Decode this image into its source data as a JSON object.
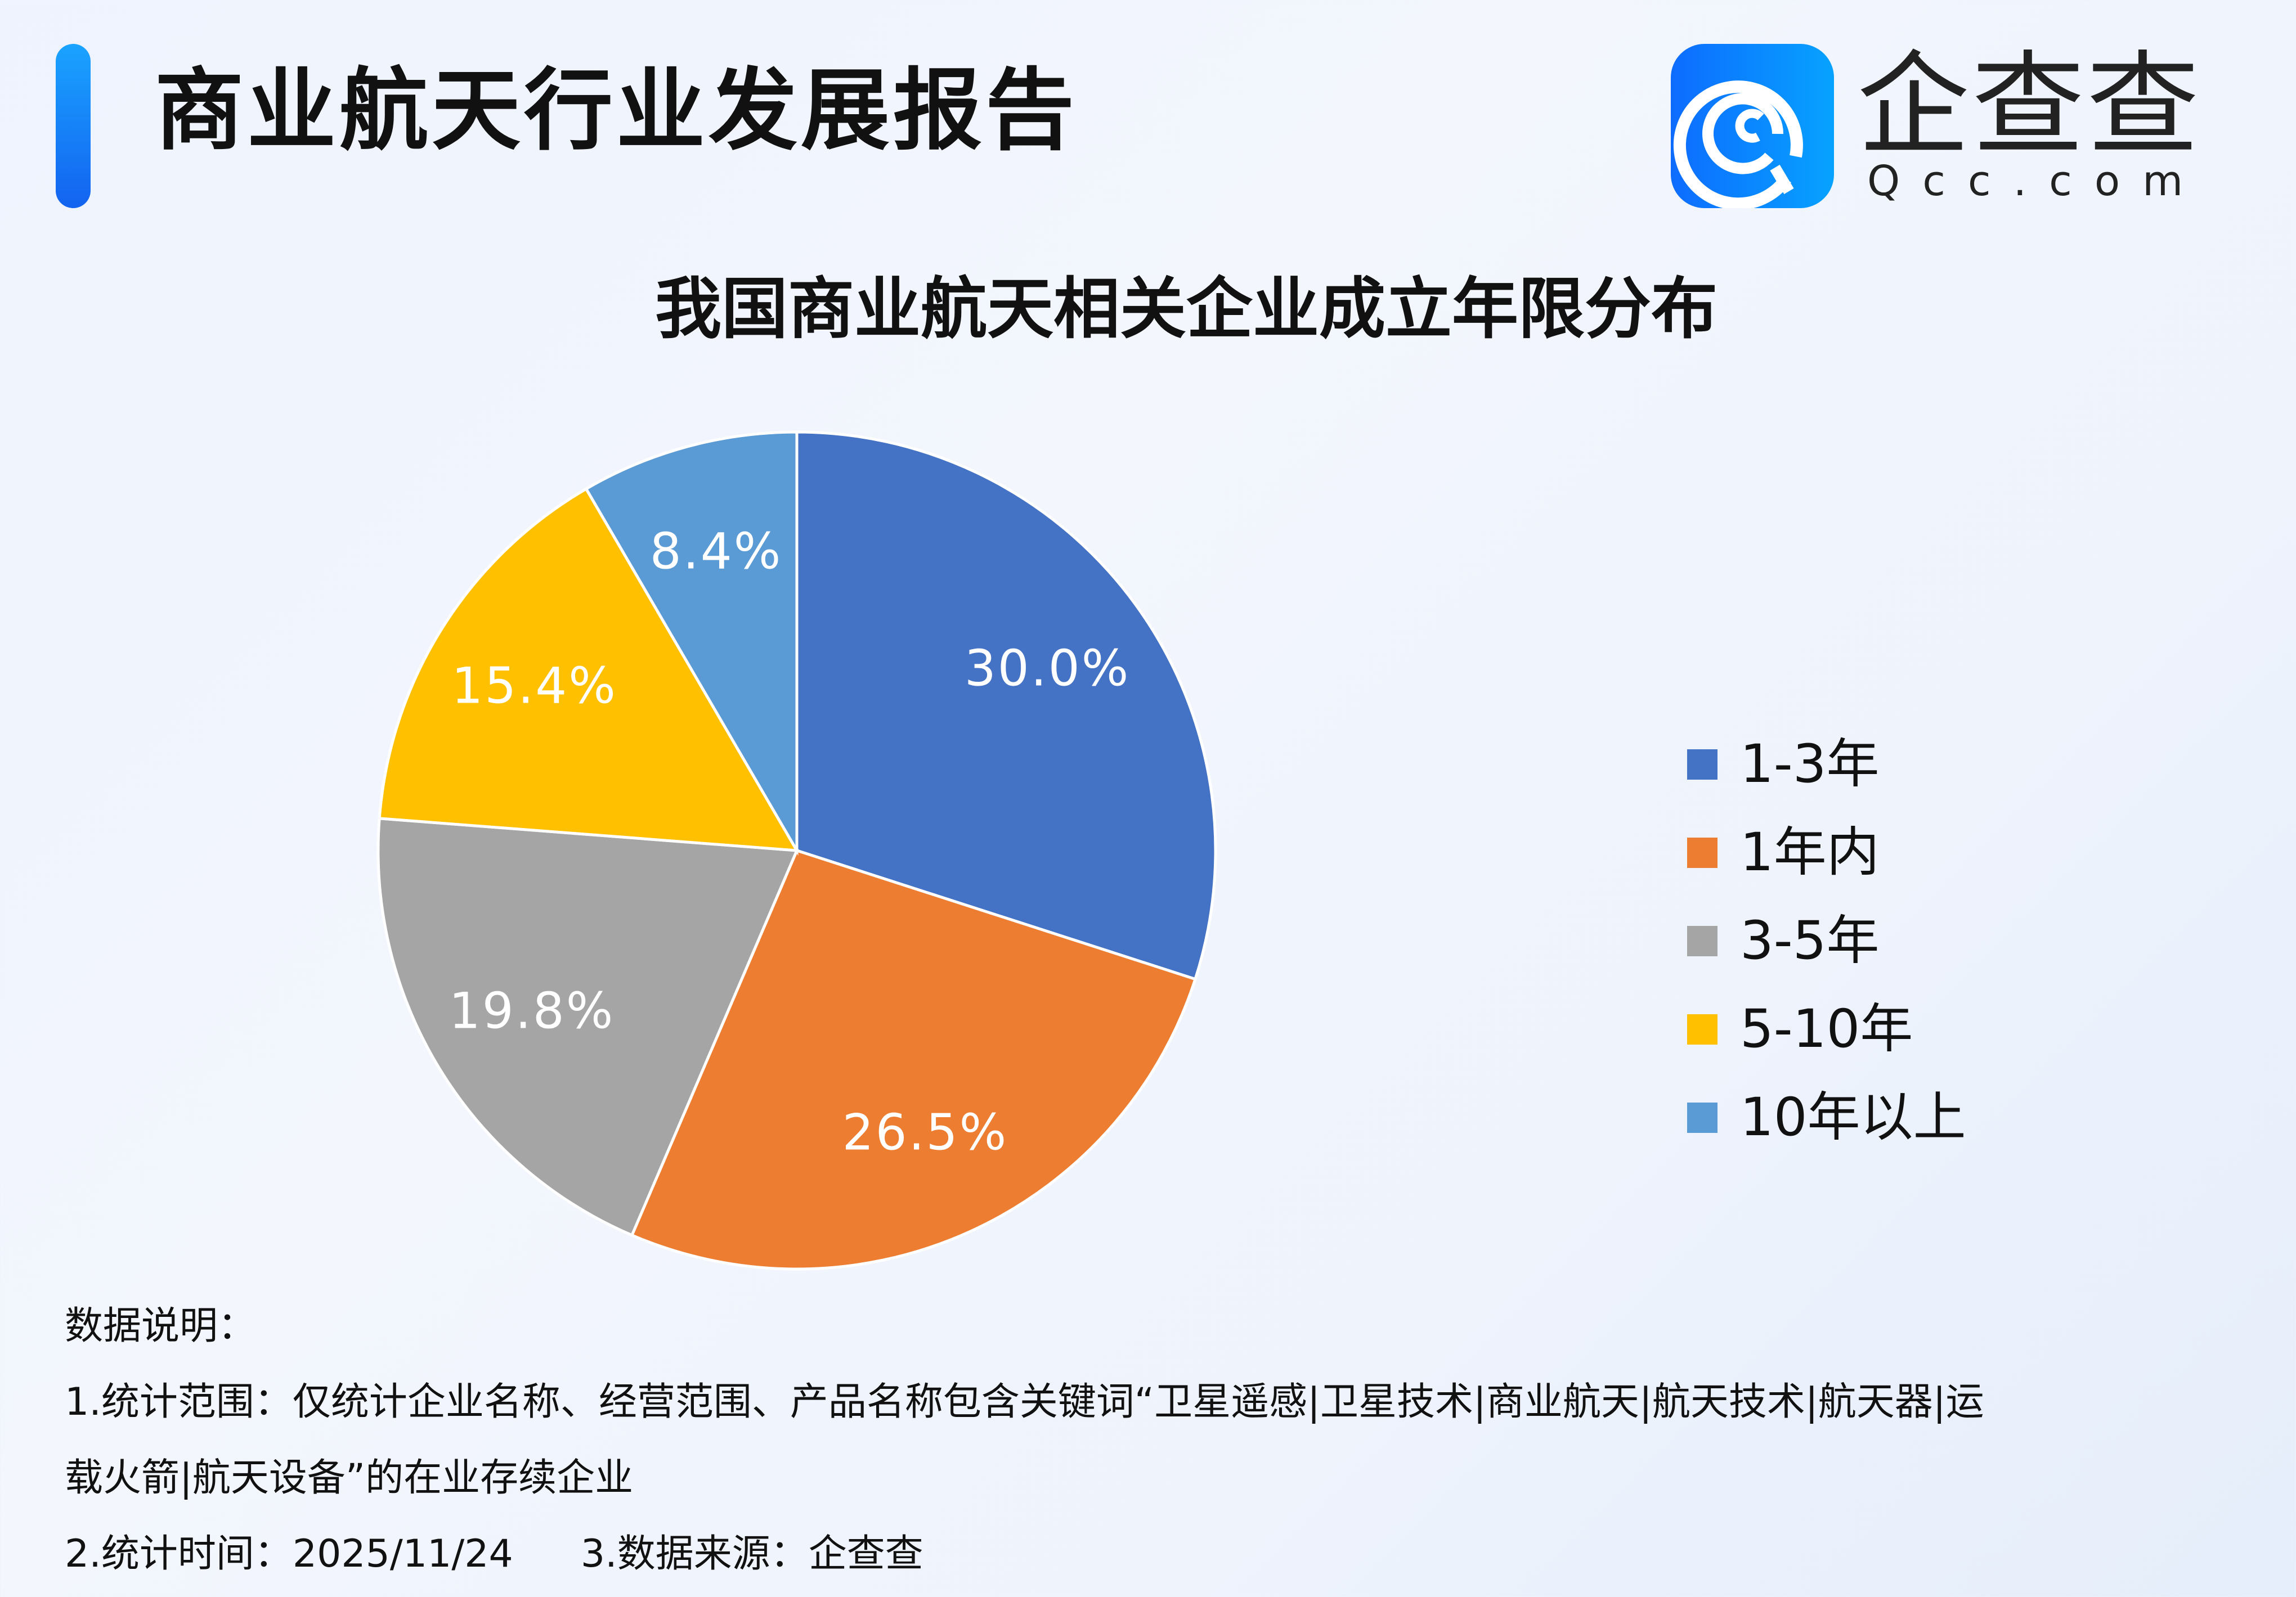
{
  "header": {
    "title": "商业航天行业发展报告",
    "logo_cn": "企查查",
    "logo_en": "Qcc.com"
  },
  "chart_data": {
    "type": "pie",
    "title": "我国商业航天相关企业成立年限分布",
    "categories": [
      "1-3年",
      "1年内",
      "3-5年",
      "5-10年",
      "10年以上"
    ],
    "values": [
      30.0,
      26.5,
      19.8,
      15.4,
      8.4
    ],
    "labels": [
      "30.0%",
      "26.5%",
      "19.8%",
      "15.4%",
      "8.4%"
    ],
    "colors": [
      "#4472c4",
      "#ed7d31",
      "#a5a5a5",
      "#ffc000",
      "#5b9bd5"
    ],
    "start": "12 o'clock, clockwise",
    "legend_position": "right"
  },
  "notes": {
    "heading": "数据说明：",
    "line1": "1.统计范围：仅统计企业名称、经营范围、产品名称包含关键词“卫星遥感|卫星技术|商业航天|航天技术|航天器|运",
    "line2": "载火箭|航天设备”的在业存续企业",
    "line3a": "2.统计时间：2025/11/24",
    "line3b": "3.数据来源：企查查"
  }
}
